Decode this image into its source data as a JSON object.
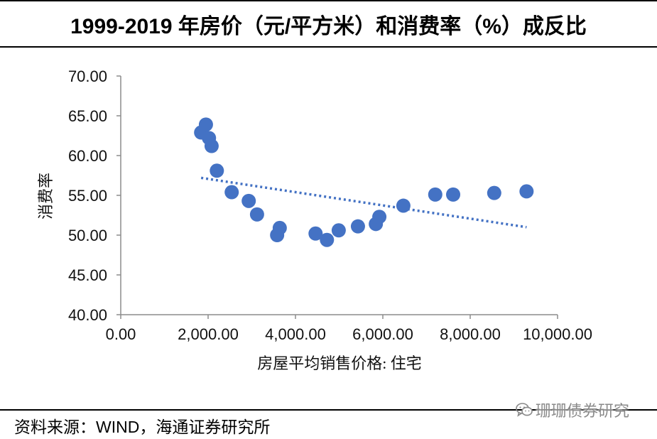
{
  "source": "资料来源：WIND，海通证券研究所",
  "watermark": {
    "icon": "wechat-icon",
    "text": "珊珊债券研究"
  },
  "colors": {
    "marker": "#4472C4",
    "trendline": "#4472C4",
    "axis": "#8c8c8c",
    "watermark": "#8a8a8a"
  },
  "chart_data": {
    "type": "scatter",
    "title": "1999-2019 年房价（元/平方米）和消费率（%）成反比",
    "xlabel": "房屋平均销售价格: 住宅",
    "ylabel": "消费率",
    "xlim": [
      0,
      10000
    ],
    "ylim": [
      40,
      70
    ],
    "xticks": [
      0,
      2000,
      4000,
      6000,
      8000,
      10000
    ],
    "xtick_labels": [
      "0.00",
      "2,000.00",
      "4,000.00",
      "6,000.00",
      "8,000.00",
      "10,000.00"
    ],
    "yticks": [
      40,
      45,
      50,
      55,
      60,
      65,
      70
    ],
    "ytick_labels": [
      "40.00",
      "45.00",
      "50.00",
      "55.00",
      "60.00",
      "65.00",
      "70.00"
    ],
    "grid": false,
    "series": [
      {
        "x": [
          1840,
          1950,
          2020,
          2080,
          2200,
          2540,
          2930,
          3120,
          3580,
          3640,
          4460,
          4720,
          4990,
          5430,
          5840,
          5920,
          6470,
          7200,
          7610,
          8550,
          9290
        ],
        "y": [
          62.9,
          63.9,
          62.2,
          61.2,
          58.1,
          55.4,
          54.3,
          52.6,
          50.0,
          50.9,
          50.2,
          49.4,
          50.6,
          51.1,
          51.4,
          52.3,
          53.7,
          55.1,
          55.1,
          55.3,
          55.5
        ]
      }
    ],
    "trendline": {
      "x": [
        1840,
        9290
      ],
      "y": [
        57.2,
        51.0
      ]
    }
  }
}
